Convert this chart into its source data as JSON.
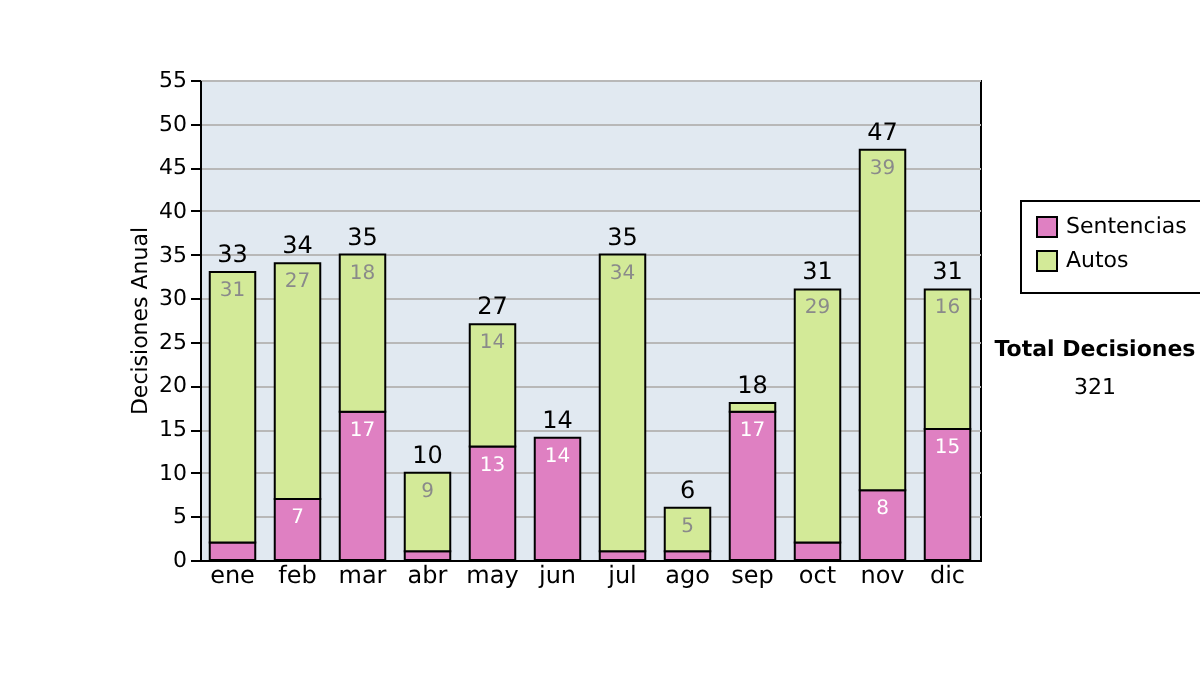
{
  "chart_data": {
    "type": "bar",
    "stacked": true,
    "ylabel": "Decisiones Anual",
    "categories": [
      "ene",
      "feb",
      "mar",
      "abr",
      "may",
      "jun",
      "jul",
      "ago",
      "sep",
      "oct",
      "nov",
      "dic"
    ],
    "series": [
      {
        "name": "Sentencias",
        "color": "#df80c2",
        "values": [
          2,
          7,
          17,
          1,
          13,
          14,
          1,
          1,
          17,
          2,
          8,
          15
        ],
        "value_labels": [
          null,
          "7",
          "17",
          null,
          "13",
          "14",
          null,
          null,
          "17",
          null,
          "8",
          "15"
        ]
      },
      {
        "name": "Autos",
        "color": "#d3ea98",
        "values": [
          31,
          27,
          18,
          9,
          14,
          0,
          34,
          5,
          1,
          29,
          39,
          16
        ],
        "value_labels": [
          "31",
          "27",
          "18",
          "9",
          "14",
          null,
          "34",
          "5",
          null,
          "29",
          "39",
          "16"
        ]
      }
    ],
    "totals": [
      "33",
      "34",
      "35",
      "10",
      "27",
      "14",
      "35",
      "6",
      "18",
      "31",
      "47",
      "31"
    ],
    "ylim": [
      0,
      55
    ],
    "yticks": [
      0,
      5,
      10,
      15,
      20,
      25,
      30,
      35,
      40,
      45,
      50,
      55
    ],
    "grid": "y",
    "legend": "right",
    "annotations": [
      "Total Decisiones",
      "321"
    ]
  }
}
